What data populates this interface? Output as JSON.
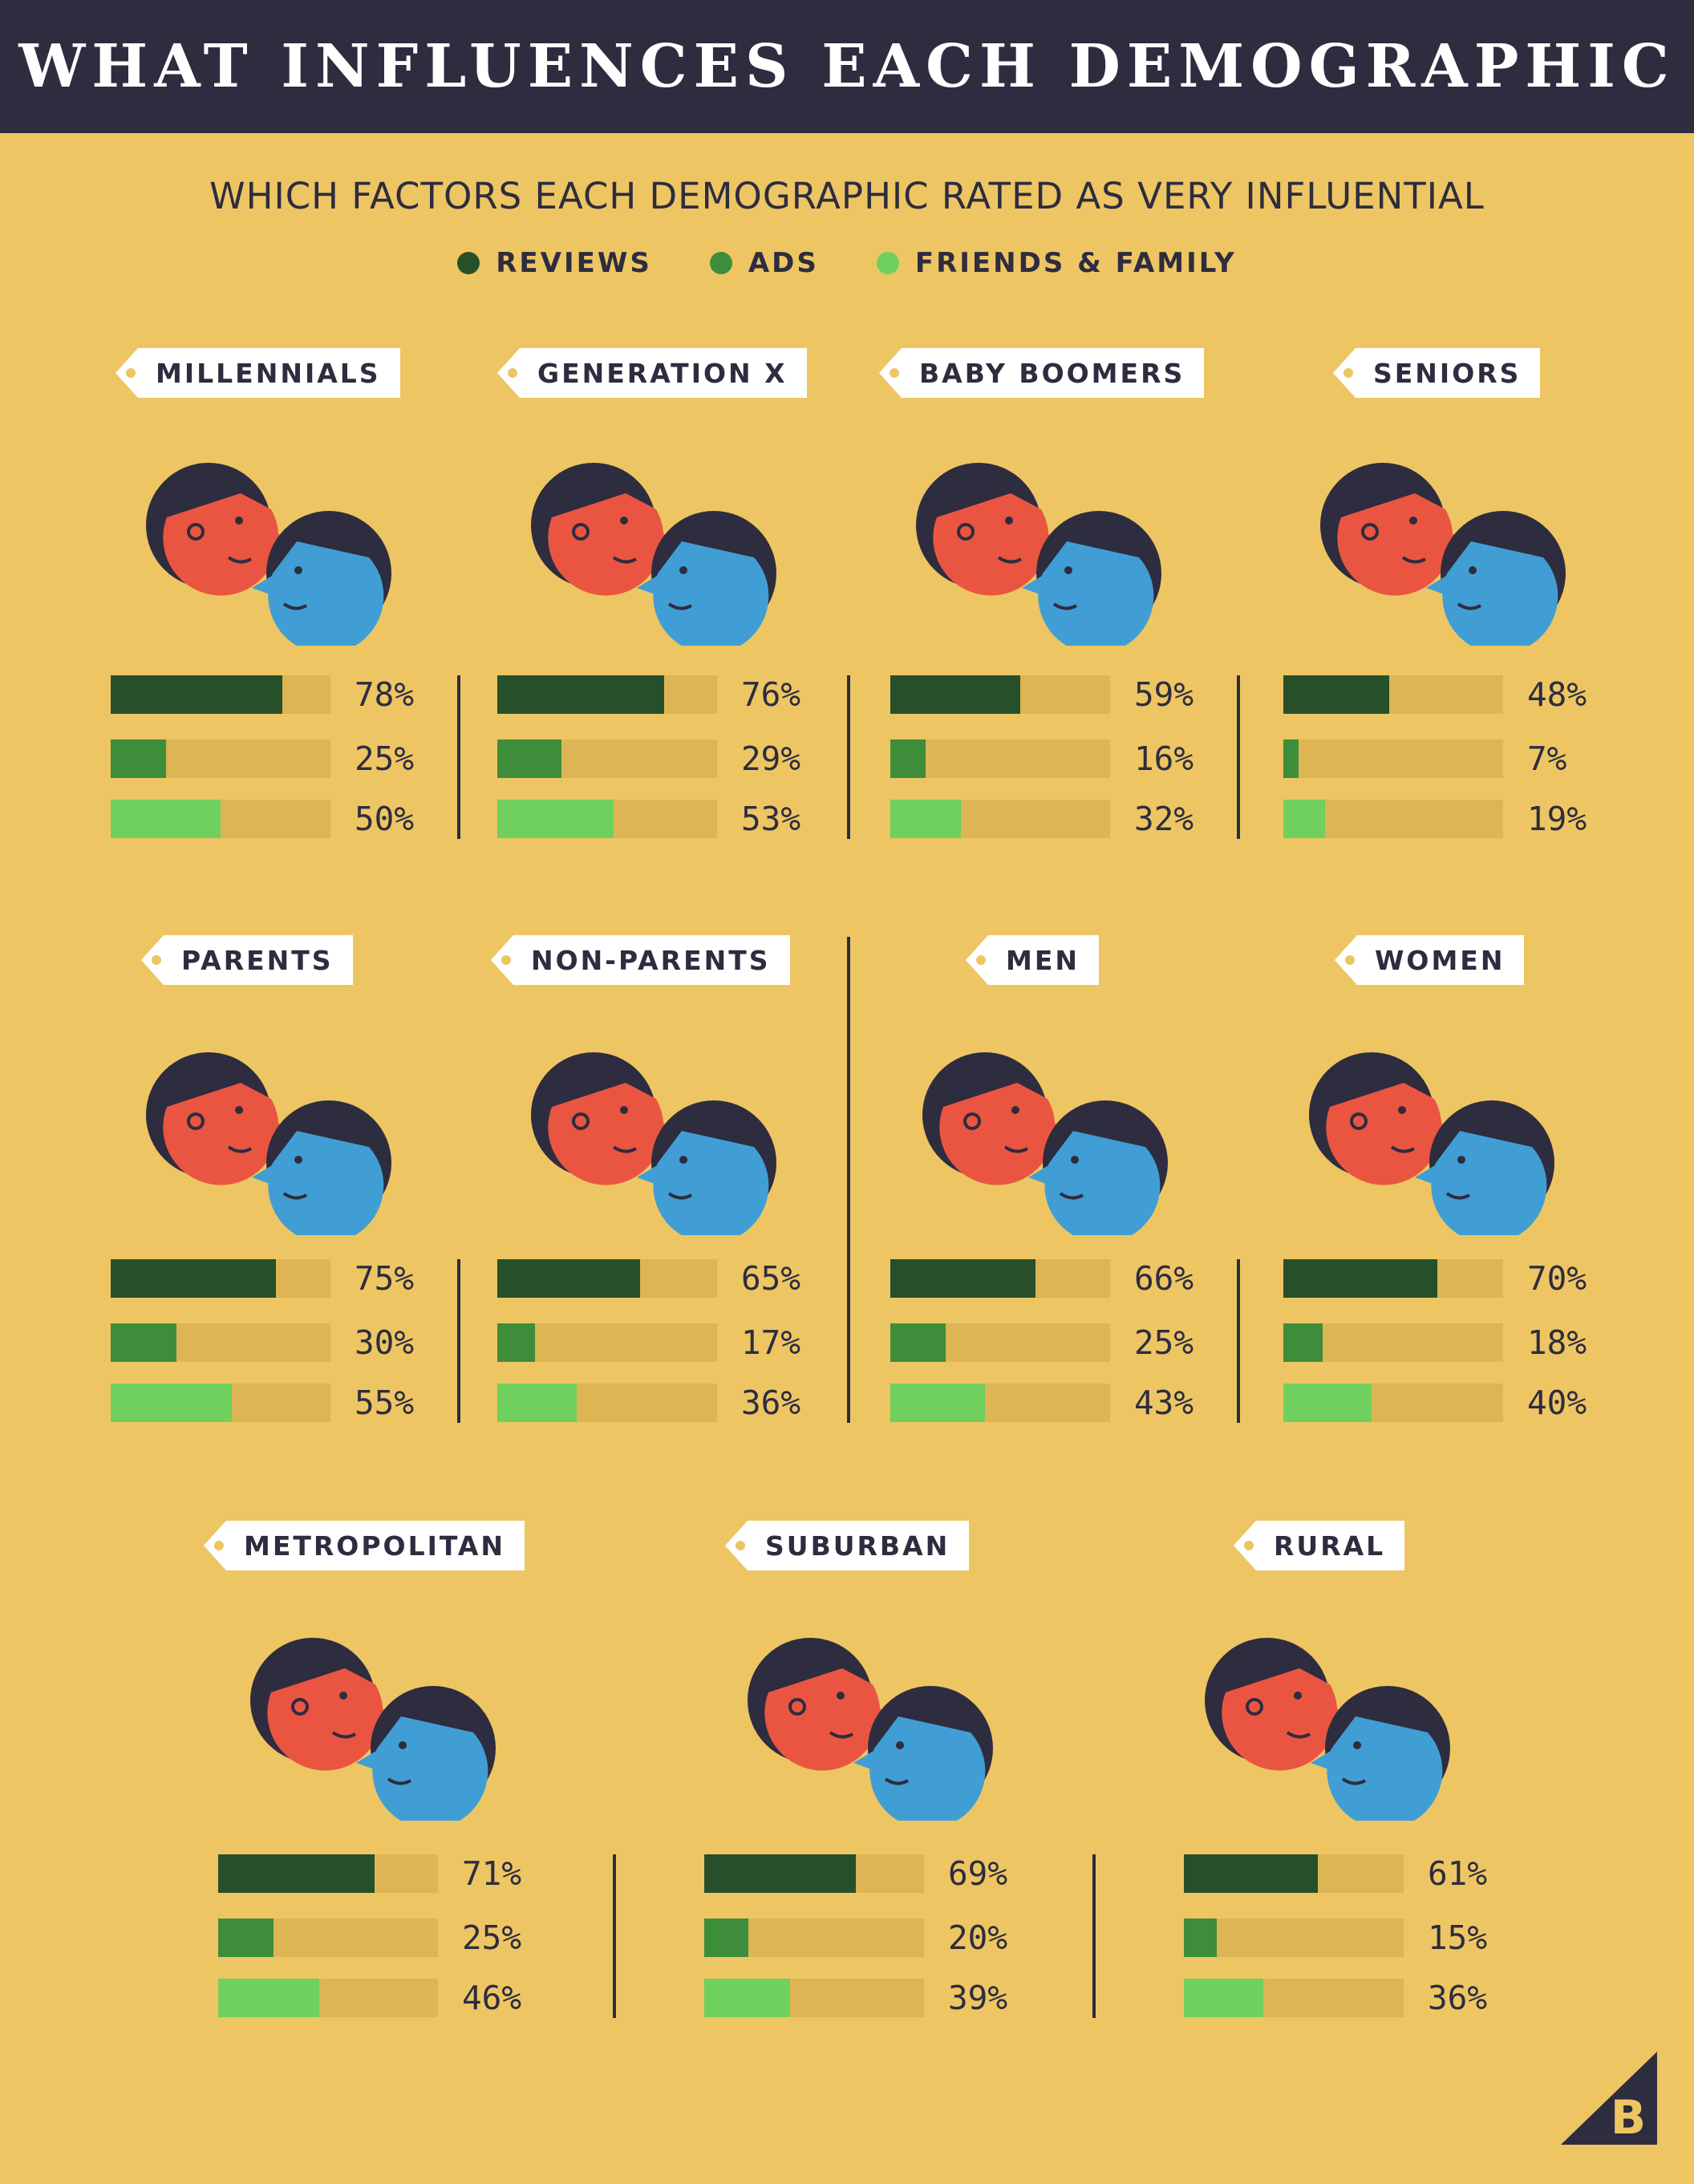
{
  "title": "WHAT INFLUENCES EACH DEMOGRAPHIC",
  "subtitle": "WHICH FACTORS EACH DEMOGRAPHIC RATED AS VERY INFLUENTIAL",
  "colors": {
    "background": "#EDC663",
    "header": "#2E2C3F",
    "reviews": "#27502A",
    "ads": "#3E8D3A",
    "friends_family": "#6FD05E",
    "track": "#DDB555",
    "face_red": "#EA5542",
    "face_blue": "#409ED4",
    "hair": "#2E2C3F"
  },
  "legend": [
    {
      "label": "REVIEWS",
      "color": "#27502A"
    },
    {
      "label": "ADS",
      "color": "#3E8D3A"
    },
    {
      "label": "FRIENDS & FAMILY",
      "color": "#6FD05E"
    }
  ],
  "chart_data": {
    "type": "bar",
    "orientation": "horizontal",
    "xlim": [
      0,
      100
    ],
    "unit": "%",
    "series_order": [
      "REVIEWS",
      "ADS",
      "FRIENDS & FAMILY"
    ],
    "groups": [
      {
        "name": "MILLENNIALS",
        "values": [
          78,
          25,
          50
        ],
        "labels": [
          "78%",
          "25%",
          "50%"
        ]
      },
      {
        "name": "GENERATION X",
        "values": [
          76,
          29,
          53
        ],
        "labels": [
          "76%",
          "29%",
          "53%"
        ]
      },
      {
        "name": "BABY BOOMERS",
        "values": [
          59,
          16,
          32
        ],
        "labels": [
          "59%",
          "16%",
          "32%"
        ]
      },
      {
        "name": "SENIORS",
        "values": [
          48,
          7,
          19
        ],
        "labels": [
          "48%",
          "7%",
          "19%"
        ]
      },
      {
        "name": "PARENTS",
        "values": [
          75,
          30,
          55
        ],
        "labels": [
          "75%",
          "30%",
          "55%"
        ]
      },
      {
        "name": "NON-PARENTS",
        "values": [
          65,
          17,
          36
        ],
        "labels": [
          "65%",
          "17%",
          "36%"
        ]
      },
      {
        "name": "MEN",
        "values": [
          66,
          25,
          43
        ],
        "labels": [
          "66%",
          "25%",
          "43%"
        ]
      },
      {
        "name": "WOMEN",
        "values": [
          70,
          18,
          40
        ],
        "labels": [
          "70%",
          "18%",
          "40%"
        ]
      },
      {
        "name": "METROPOLITAN",
        "values": [
          71,
          25,
          46
        ],
        "labels": [
          "71%",
          "25%",
          "46%"
        ]
      },
      {
        "name": "SUBURBAN",
        "values": [
          69,
          20,
          39
        ],
        "labels": [
          "69%",
          "20%",
          "39%"
        ]
      },
      {
        "name": "RURAL",
        "values": [
          61,
          15,
          36
        ],
        "labels": [
          "61%",
          "15%",
          "36%"
        ]
      }
    ]
  },
  "logo_letter": "B"
}
